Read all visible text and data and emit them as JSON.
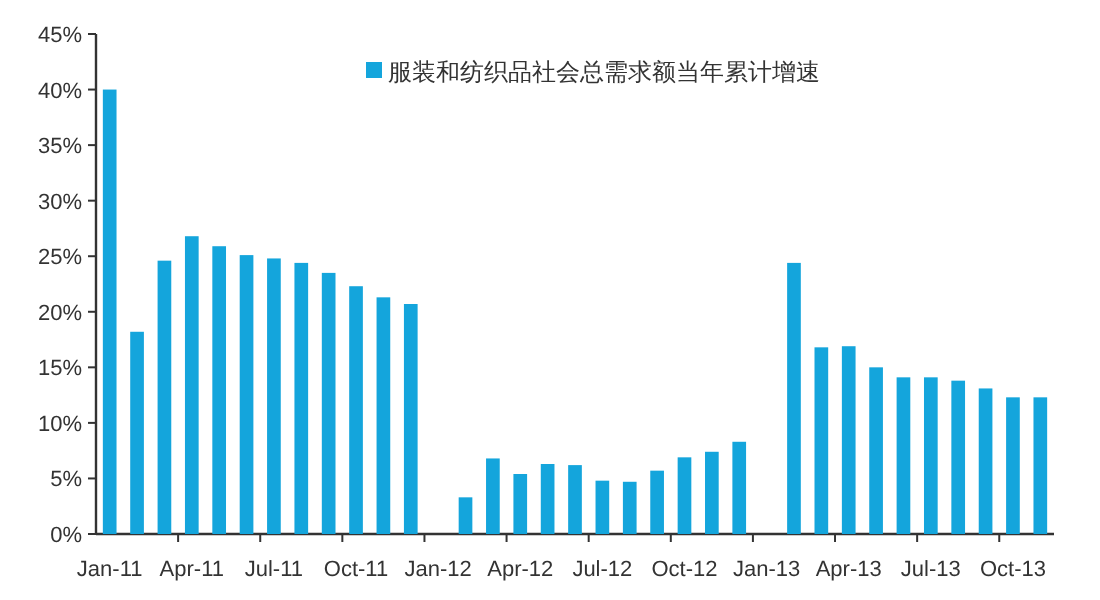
{
  "chart_data": {
    "type": "bar",
    "categories": [
      "Jan-11",
      null,
      null,
      "Apr-11",
      null,
      null,
      "Jul-11",
      null,
      null,
      "Oct-11",
      null,
      null,
      "Jan-12",
      null,
      null,
      "Apr-12",
      null,
      null,
      "Jul-12",
      null,
      null,
      "Oct-12",
      null,
      null,
      "Jan-13",
      null,
      null,
      "Apr-13",
      null,
      null,
      "Jul-13",
      null,
      null,
      "Oct-13",
      null
    ],
    "series": [
      {
        "name": "服装和纺织品社会总需求额当年累计增速",
        "color": "#14a5dc",
        "values": [
          40.0,
          18.2,
          24.6,
          26.8,
          25.9,
          25.1,
          24.8,
          24.4,
          23.5,
          22.3,
          21.3,
          20.7,
          null,
          3.3,
          6.8,
          5.4,
          6.3,
          6.2,
          4.8,
          4.7,
          5.7,
          6.9,
          7.4,
          8.3,
          null,
          24.4,
          16.8,
          16.9,
          15.0,
          14.1,
          14.1,
          13.8,
          13.1,
          12.3,
          12.3
        ]
      }
    ],
    "ylim": [
      0,
      45
    ],
    "yticks": [
      {
        "value": 0,
        "label": "0%"
      },
      {
        "value": 5,
        "label": "5%"
      },
      {
        "value": 10,
        "label": "10%"
      },
      {
        "value": 15,
        "label": "15%"
      },
      {
        "value": 20,
        "label": "20%"
      },
      {
        "value": 25,
        "label": "25%"
      },
      {
        "value": 30,
        "label": "30%"
      },
      {
        "value": 35,
        "label": "35%"
      },
      {
        "value": 40,
        "label": "40%"
      },
      {
        "value": 45,
        "label": "45%"
      }
    ],
    "legend": "top"
  }
}
